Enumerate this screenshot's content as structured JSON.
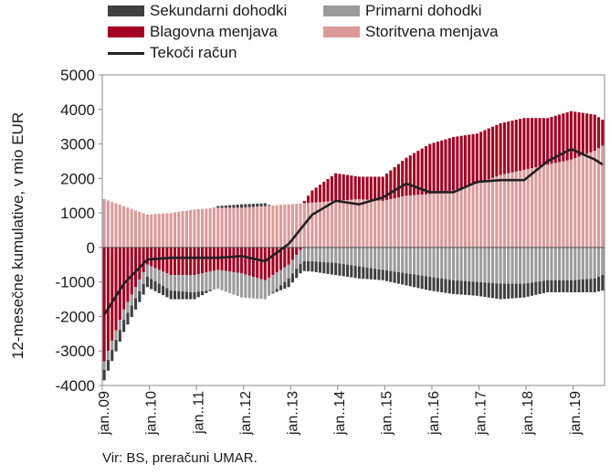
{
  "chart_data": {
    "type": "bar",
    "stacked": true,
    "ylabel": "12-mesečne kumulative, v mio EUR",
    "ylim": [
      -4000,
      5000
    ],
    "yticks": [
      -4000,
      -3000,
      -2000,
      -1000,
      0,
      1000,
      2000,
      3000,
      4000,
      5000
    ],
    "grid": false,
    "legend_position": "top",
    "x_start": "2009-01",
    "x_end": "2019-08",
    "x_tick_labels": [
      "jan..09",
      "jan..10",
      "jan..11",
      "jan..12",
      "jan..13",
      "jan..14",
      "jan..15",
      "jan..16",
      "jan..17",
      "jan..18",
      "jan..19"
    ],
    "keyframes_note_x": [
      "2009-01",
      "2009-06",
      "2009-12",
      "2010-06",
      "2010-12",
      "2011-06",
      "2011-12",
      "2012-06",
      "2012-12",
      "2013-06",
      "2013-12",
      "2014-06",
      "2014-12",
      "2015-06",
      "2015-12",
      "2016-06",
      "2016-12",
      "2017-06",
      "2017-12",
      "2018-06",
      "2018-12",
      "2019-06",
      "2019-08"
    ],
    "series": [
      {
        "name": "Storitvena menjava",
        "color": "#dc9a9a",
        "values": [
          1400,
          1200,
          950,
          1000,
          1100,
          1150,
          1150,
          1200,
          1250,
          1300,
          1350,
          1400,
          1350,
          1500,
          1550,
          1650,
          1850,
          2100,
          2250,
          2400,
          2550,
          2800,
          2950
        ]
      },
      {
        "name": "Blagovna menjava",
        "color": "#a50021",
        "values": [
          -3300,
          -1800,
          -500,
          -800,
          -800,
          -650,
          -750,
          -950,
          -500,
          350,
          800,
          650,
          700,
          1100,
          1450,
          1550,
          1450,
          1500,
          1500,
          1350,
          1400,
          1050,
          750
        ]
      },
      {
        "name": "Primarni dohodki",
        "color": "#9b9b9b",
        "values": [
          -250,
          -300,
          -350,
          -450,
          -500,
          -550,
          -700,
          -550,
          -400,
          -400,
          -450,
          -550,
          -650,
          -750,
          -850,
          -950,
          -1000,
          -1050,
          -1050,
          -950,
          -950,
          -900,
          -800
        ]
      },
      {
        "name": "Sekundarni dohodki",
        "color": "#3f3f3f",
        "values": [
          -300,
          -350,
          -300,
          -250,
          -200,
          50,
          100,
          80,
          -250,
          -300,
          -350,
          -350,
          -300,
          -350,
          -400,
          -400,
          -400,
          -450,
          -400,
          -350,
          -350,
          -400,
          -450
        ]
      }
    ],
    "line": {
      "name": "Tekoči račun",
      "color": "#222222",
      "values": [
        -1950,
        -1050,
        -350,
        -300,
        -300,
        -300,
        -250,
        -400,
        100,
        950,
        1350,
        1250,
        1450,
        1850,
        1600,
        1600,
        1900,
        1950,
        1950,
        2500,
        2850,
        2550,
        2400
      ]
    }
  },
  "legend": {
    "sekundarni": "Sekundarni dohodki",
    "primarni": "Primarni dohodki",
    "blagovna": "Blagovna menjava",
    "storitvena": "Storitvena menjava",
    "tekoci": "Tekoči račun"
  },
  "source": "Vir: BS, preračuni UMAR.",
  "colors": {
    "storitvena": "#dc9a9a",
    "blagovna": "#a50021",
    "primarni": "#9b9b9b",
    "sekundarni": "#3f3f3f",
    "line": "#222222"
  }
}
